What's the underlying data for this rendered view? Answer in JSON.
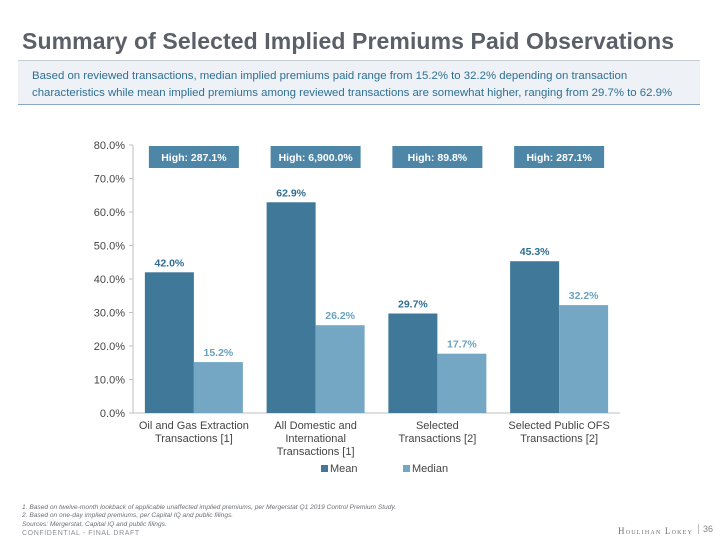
{
  "page": {
    "title": "Summary of Selected Implied Premiums Paid Observations",
    "summary": "Based on reviewed transactions, median implied premiums paid range from 15.2% to 32.2% depending on transaction characteristics while mean implied premiums among reviewed transactions are somewhat higher, ranging from 29.7% to 62.9%",
    "footnotes": [
      "1.  Based on twelve-month lookback of applicable unaffected implied premiums, per Mergerstat Q1 2019 Control Premium Study.",
      "2.  Based on one-day implied premiums, per Capital IQ and public filings.",
      "Sources: Mergerstat, Capital IQ and public filings."
    ],
    "confidential": "CONFIDENTIAL - FINAL DRAFT",
    "logo": "Houlihan Lokey",
    "page_number": "36"
  },
  "colors": {
    "mean": "#3f7899",
    "median": "#73a7c3",
    "high_box": "#4d86a6",
    "axis_text": "#444444",
    "mean_label": "#2f6e93",
    "median_label": "#6aa2c0"
  },
  "chart_data": {
    "type": "bar",
    "title": "",
    "xlabel": "",
    "ylabel": "",
    "ylim": [
      0,
      80
    ],
    "yticks": [
      0,
      10,
      20,
      30,
      40,
      50,
      60,
      70,
      80
    ],
    "ytick_labels": [
      "0.0%",
      "10.0%",
      "20.0%",
      "30.0%",
      "40.0%",
      "50.0%",
      "60.0%",
      "70.0%",
      "80.0%"
    ],
    "categories": [
      [
        "Oil and Gas Extraction",
        "Transactions [1]"
      ],
      [
        "All Domestic and",
        "International",
        "Transactions [1]"
      ],
      [
        "Selected",
        "Transactions [2]"
      ],
      [
        "Selected Public OFS",
        "Transactions [2]"
      ]
    ],
    "series": [
      {
        "name": "Mean",
        "values": [
          42.0,
          62.9,
          29.7,
          45.3
        ],
        "labels": [
          "42.0%",
          "62.9%",
          "29.7%",
          "45.3%"
        ]
      },
      {
        "name": "Median",
        "values": [
          15.2,
          26.2,
          17.7,
          32.2
        ],
        "labels": [
          "15.2%",
          "26.2%",
          "17.7%",
          "32.2%"
        ]
      }
    ],
    "highs": [
      "High: 287.1%",
      "High: 6,900.0%",
      "High: 89.8%",
      "High: 287.1%"
    ],
    "legend": {
      "position": "bottom",
      "entries": [
        "Mean",
        "Median"
      ]
    },
    "grid": false
  }
}
